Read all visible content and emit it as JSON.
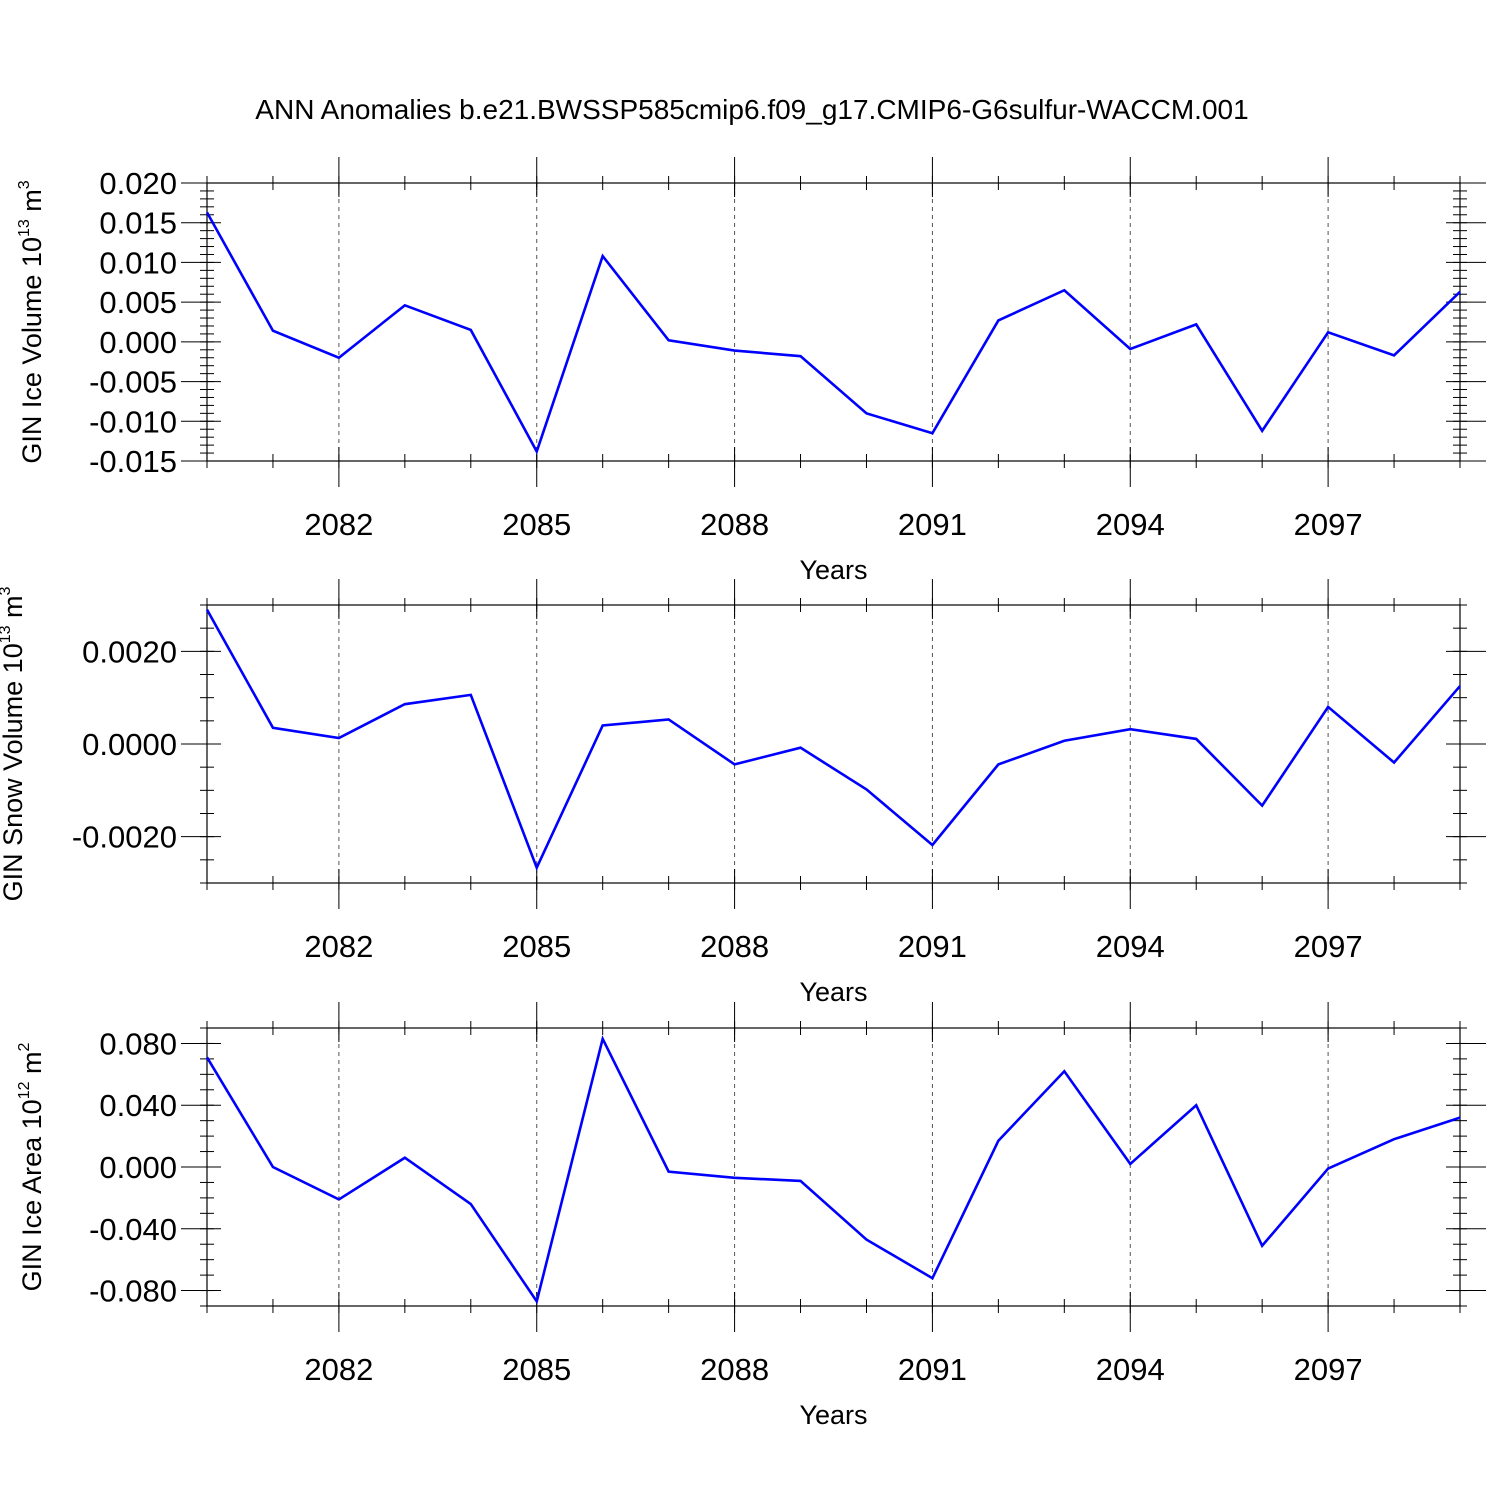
{
  "title": "ANN Anomalies b.e21.BWSSP585cmip6.f09_g17.CMIP6-G6sulfur-WACCM.001",
  "line_color": "#0000ff",
  "chart_data": [
    {
      "type": "line",
      "ylabel": "GIN Ice Volume 10",
      "ylabel_exp": "13",
      "ylabel_unit": " m",
      "ylabel_unit_exp": "3",
      "xlabel": "Years",
      "xlim": [
        2080,
        2099
      ],
      "ylim": [
        -0.015,
        0.02
      ],
      "x_ticks": [
        2082,
        2085,
        2088,
        2091,
        2094,
        2097
      ],
      "x_tick_labels": [
        "2082",
        "2085",
        "2088",
        "2091",
        "2094",
        "2097"
      ],
      "y_ticks": [
        -0.015,
        -0.01,
        -0.005,
        0.0,
        0.005,
        0.01,
        0.015,
        0.02
      ],
      "y_tick_labels": [
        "-0.015",
        "-0.010",
        "-0.005",
        "0.000",
        "0.005",
        "0.010",
        "0.015",
        "0.020"
      ],
      "y_minor_step": 0.001,
      "grid": "vertical dashed at major x ticks",
      "x": [
        2080,
        2081,
        2082,
        2083,
        2084,
        2085,
        2086,
        2087,
        2088,
        2089,
        2090,
        2091,
        2092,
        2093,
        2094,
        2095,
        2096,
        2097,
        2098,
        2099
      ],
      "values": [
        0.0163,
        0.0014,
        -0.002,
        0.0046,
        0.0015,
        -0.0138,
        0.0108,
        0.0002,
        -0.0011,
        -0.0018,
        -0.009,
        -0.0115,
        0.0027,
        0.0065,
        -0.0009,
        0.0022,
        -0.0112,
        0.0012,
        -0.0017,
        0.0063
      ]
    },
    {
      "type": "line",
      "ylabel": "GIN Snow Volume 10",
      "ylabel_exp": "13",
      "ylabel_unit": " m",
      "ylabel_unit_exp": "3",
      "xlabel": "Years",
      "xlim": [
        2080,
        2099
      ],
      "ylim": [
        -0.003,
        0.003
      ],
      "x_ticks": [
        2082,
        2085,
        2088,
        2091,
        2094,
        2097
      ],
      "x_tick_labels": [
        "2082",
        "2085",
        "2088",
        "2091",
        "2094",
        "2097"
      ],
      "y_ticks": [
        -0.002,
        0.0,
        0.002
      ],
      "y_tick_labels": [
        "-0.0020",
        "0.0000",
        "0.0020"
      ],
      "y_minor_step": 0.0005,
      "grid": "vertical dashed at major x ticks",
      "x": [
        2080,
        2081,
        2082,
        2083,
        2084,
        2085,
        2086,
        2087,
        2088,
        2089,
        2090,
        2091,
        2092,
        2093,
        2094,
        2095,
        2096,
        2097,
        2098,
        2099
      ],
      "values": [
        0.0029,
        0.00035,
        0.00013,
        0.00086,
        0.00106,
        -0.00267,
        0.0004,
        0.00053,
        -0.00044,
        -8e-05,
        -0.00098,
        -0.00218,
        -0.00044,
        7e-05,
        0.00032,
        0.00011,
        -0.00133,
        0.0008,
        -0.0004,
        0.00125
      ]
    },
    {
      "type": "line",
      "ylabel": "GIN Ice Area 10",
      "ylabel_exp": "12",
      "ylabel_unit": " m",
      "ylabel_unit_exp": "2",
      "xlabel": "Years",
      "xlim": [
        2080,
        2099
      ],
      "ylim": [
        -0.09,
        0.09
      ],
      "x_ticks": [
        2082,
        2085,
        2088,
        2091,
        2094,
        2097
      ],
      "x_tick_labels": [
        "2082",
        "2085",
        "2088",
        "2091",
        "2094",
        "2097"
      ],
      "y_ticks": [
        -0.08,
        -0.04,
        0.0,
        0.04,
        0.08
      ],
      "y_tick_labels": [
        "-0.080",
        "-0.040",
        "0.000",
        "0.040",
        "0.080"
      ],
      "y_minor_step": 0.01,
      "grid": "vertical dashed at major x ticks",
      "x": [
        2080,
        2081,
        2082,
        2083,
        2084,
        2085,
        2086,
        2087,
        2088,
        2089,
        2090,
        2091,
        2092,
        2093,
        2094,
        2095,
        2096,
        2097,
        2098,
        2099
      ],
      "values": [
        0.071,
        0.0,
        -0.021,
        0.006,
        -0.024,
        -0.087,
        0.083,
        -0.003,
        -0.007,
        -0.009,
        -0.047,
        -0.072,
        0.017,
        0.062,
        0.002,
        0.04,
        -0.051,
        -0.001,
        0.018,
        0.032
      ]
    }
  ]
}
